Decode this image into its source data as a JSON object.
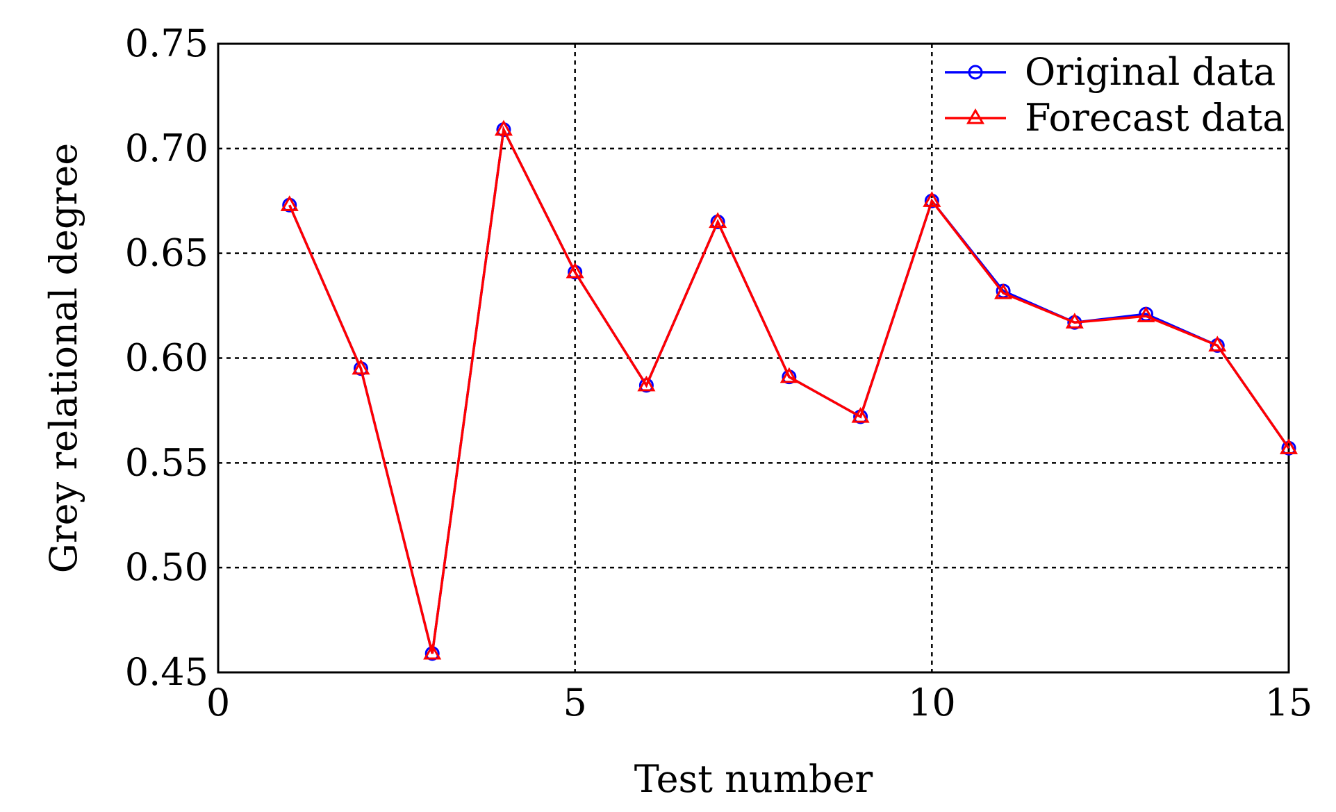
{
  "chart_data": {
    "type": "line",
    "xlabel": "Test number",
    "ylabel": "Grey relational degree",
    "xlim": [
      0,
      15
    ],
    "ylim": [
      0.45,
      0.75
    ],
    "xticks": [
      0,
      5,
      10,
      15
    ],
    "xtick_labels": [
      "0",
      "5",
      "10",
      "15"
    ],
    "yticks": [
      0.45,
      0.5,
      0.55,
      0.6,
      0.65,
      0.7,
      0.75
    ],
    "ytick_labels": [
      "0.45",
      "0.50",
      "0.55",
      "0.60",
      "0.65",
      "0.70",
      "0.75"
    ],
    "grid": true,
    "legend_position": "top-right",
    "x": [
      1,
      2,
      3,
      4,
      5,
      6,
      7,
      8,
      9,
      10,
      11,
      12,
      13,
      14,
      15
    ],
    "series": [
      {
        "name": "Original data",
        "color": "#0000ff",
        "marker": "circle",
        "values": [
          0.673,
          0.595,
          0.459,
          0.709,
          0.641,
          0.587,
          0.665,
          0.591,
          0.572,
          0.675,
          0.632,
          0.617,
          0.621,
          0.606,
          0.557
        ]
      },
      {
        "name": "Forecast data",
        "color": "#ff0000",
        "marker": "triangle",
        "values": [
          0.673,
          0.595,
          0.459,
          0.709,
          0.641,
          0.587,
          0.665,
          0.591,
          0.572,
          0.675,
          0.631,
          0.617,
          0.62,
          0.606,
          0.557
        ]
      }
    ]
  }
}
